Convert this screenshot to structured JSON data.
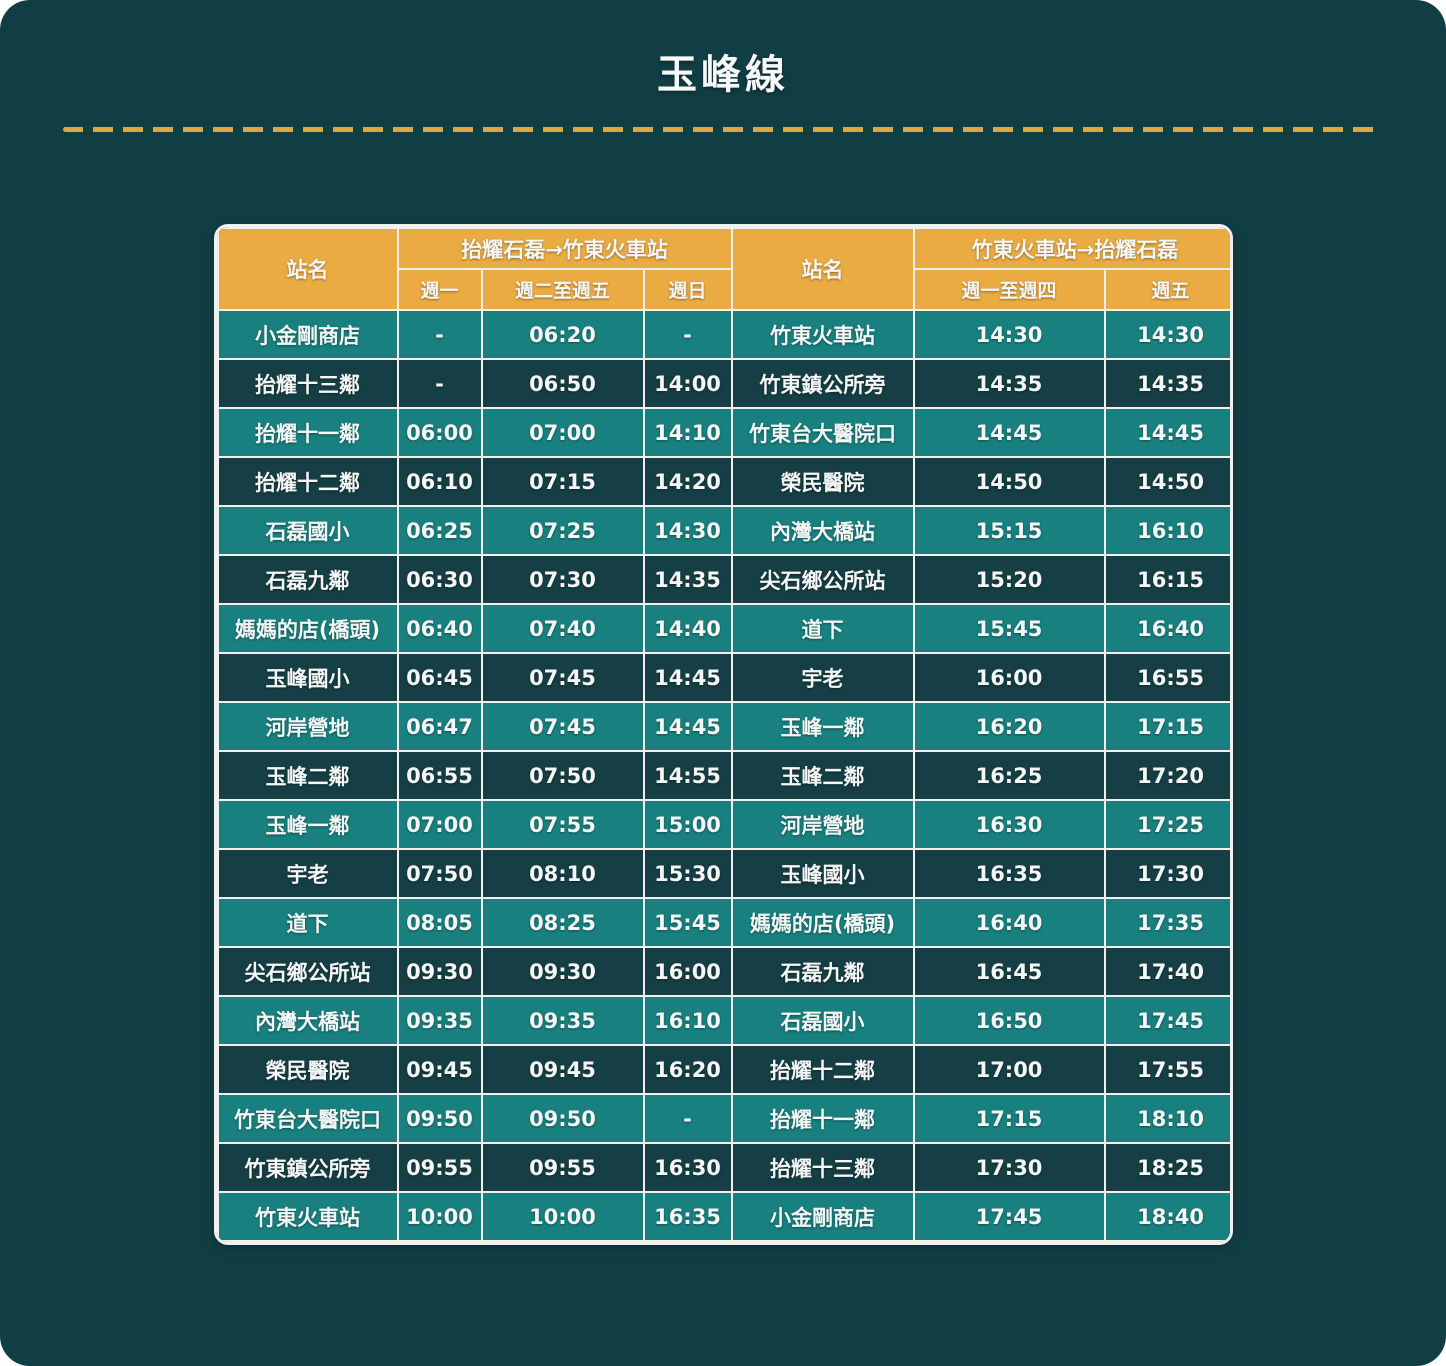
{
  "page": {
    "title": "玉峰線"
  },
  "theme": {
    "background": "#113e44",
    "header_bg": "#eaab43",
    "row_light_bg": "#18807f",
    "row_dark_bg": "#153f44",
    "border_color": "#f0f0ee",
    "dash_gold": "#dfa742"
  },
  "table": {
    "left": {
      "station_header": "站名",
      "direction_header": "抬耀石磊→竹東火車站",
      "day_columns": [
        "週一",
        "週二至週五",
        "週日"
      ],
      "rows": [
        {
          "station": "小金剛商店",
          "times": [
            "-",
            "06:20",
            "-"
          ]
        },
        {
          "station": "抬耀十三鄰",
          "times": [
            "-",
            "06:50",
            "14:00"
          ]
        },
        {
          "station": "抬耀十一鄰",
          "times": [
            "06:00",
            "07:00",
            "14:10"
          ]
        },
        {
          "station": "抬耀十二鄰",
          "times": [
            "06:10",
            "07:15",
            "14:20"
          ]
        },
        {
          "station": "石磊國小",
          "times": [
            "06:25",
            "07:25",
            "14:30"
          ]
        },
        {
          "station": "石磊九鄰",
          "times": [
            "06:30",
            "07:30",
            "14:35"
          ]
        },
        {
          "station": "媽媽的店(橋頭)",
          "times": [
            "06:40",
            "07:40",
            "14:40"
          ]
        },
        {
          "station": "玉峰國小",
          "times": [
            "06:45",
            "07:45",
            "14:45"
          ]
        },
        {
          "station": "河岸營地",
          "times": [
            "06:47",
            "07:45",
            "14:45"
          ]
        },
        {
          "station": "玉峰二鄰",
          "times": [
            "06:55",
            "07:50",
            "14:55"
          ]
        },
        {
          "station": "玉峰一鄰",
          "times": [
            "07:00",
            "07:55",
            "15:00"
          ]
        },
        {
          "station": "宇老",
          "times": [
            "07:50",
            "08:10",
            "15:30"
          ]
        },
        {
          "station": "道下",
          "times": [
            "08:05",
            "08:25",
            "15:45"
          ]
        },
        {
          "station": "尖石鄉公所站",
          "times": [
            "09:30",
            "09:30",
            "16:00"
          ]
        },
        {
          "station": "內灣大橋站",
          "times": [
            "09:35",
            "09:35",
            "16:10"
          ]
        },
        {
          "station": "榮民醫院",
          "times": [
            "09:45",
            "09:45",
            "16:20"
          ]
        },
        {
          "station": "竹東台大醫院口",
          "times": [
            "09:50",
            "09:50",
            "-"
          ]
        },
        {
          "station": "竹東鎮公所旁",
          "times": [
            "09:55",
            "09:55",
            "16:30"
          ]
        },
        {
          "station": "竹東火車站",
          "times": [
            "10:00",
            "10:00",
            "16:35"
          ]
        }
      ]
    },
    "right": {
      "station_header": "站名",
      "direction_header": "竹東火車站→抬耀石磊",
      "day_columns": [
        "週一至週四",
        "週五"
      ],
      "rows": [
        {
          "station": "竹東火車站",
          "times": [
            "14:30",
            "14:30"
          ]
        },
        {
          "station": "竹東鎮公所旁",
          "times": [
            "14:35",
            "14:35"
          ]
        },
        {
          "station": "竹東台大醫院口",
          "times": [
            "14:45",
            "14:45"
          ]
        },
        {
          "station": "榮民醫院",
          "times": [
            "14:50",
            "14:50"
          ]
        },
        {
          "station": "內灣大橋站",
          "times": [
            "15:15",
            "16:10"
          ]
        },
        {
          "station": "尖石鄉公所站",
          "times": [
            "15:20",
            "16:15"
          ]
        },
        {
          "station": "道下",
          "times": [
            "15:45",
            "16:40"
          ]
        },
        {
          "station": "宇老",
          "times": [
            "16:00",
            "16:55"
          ]
        },
        {
          "station": "玉峰一鄰",
          "times": [
            "16:20",
            "17:15"
          ]
        },
        {
          "station": "玉峰二鄰",
          "times": [
            "16:25",
            "17:20"
          ]
        },
        {
          "station": "河岸營地",
          "times": [
            "16:30",
            "17:25"
          ]
        },
        {
          "station": "玉峰國小",
          "times": [
            "16:35",
            "17:30"
          ]
        },
        {
          "station": "媽媽的店(橋頭)",
          "times": [
            "16:40",
            "17:35"
          ]
        },
        {
          "station": "石磊九鄰",
          "times": [
            "16:45",
            "17:40"
          ]
        },
        {
          "station": "石磊國小",
          "times": [
            "16:50",
            "17:45"
          ]
        },
        {
          "station": "抬耀十二鄰",
          "times": [
            "17:00",
            "17:55"
          ]
        },
        {
          "station": "抬耀十一鄰",
          "times": [
            "17:15",
            "18:10"
          ]
        },
        {
          "station": "抬耀十三鄰",
          "times": [
            "17:30",
            "18:25"
          ]
        },
        {
          "station": "小金剛商店",
          "times": [
            "17:45",
            "18:40"
          ]
        }
      ]
    }
  }
}
